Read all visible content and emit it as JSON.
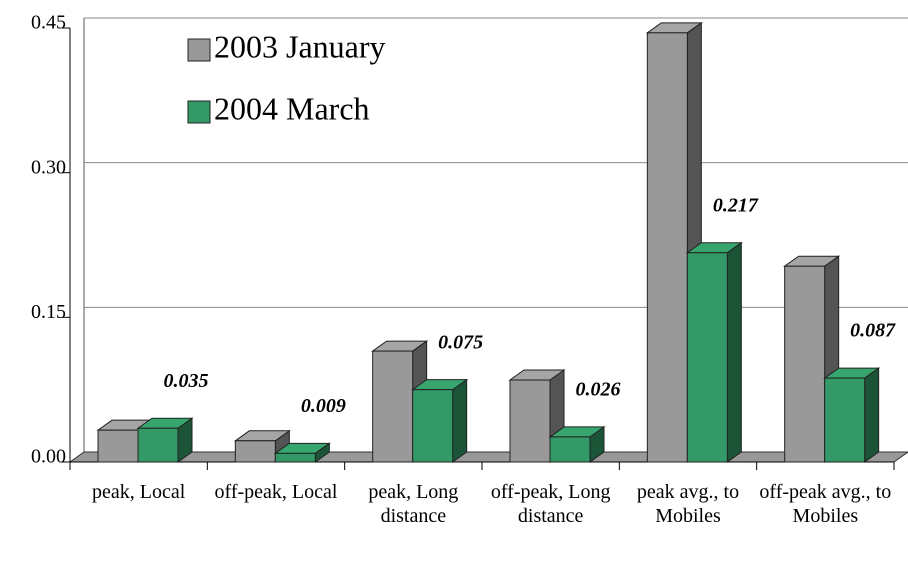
{
  "chart_data": {
    "type": "bar3d",
    "categories": [
      "peak, Local",
      "off-peak, Local",
      "peak, Long distance",
      "off-peak, Long distance",
      "peak avg., to Mobiles",
      "off-peak avg., to Mobiles"
    ],
    "series": [
      {
        "name": "2003 January",
        "color": "#999999",
        "values": [
          0.033,
          0.022,
          0.115,
          0.085,
          0.445,
          0.203
        ]
      },
      {
        "name": "2004 March",
        "color": "#339966",
        "values": [
          0.035,
          0.009,
          0.075,
          0.026,
          0.217,
          0.087
        ],
        "value_labels": [
          "0.035",
          "0.009",
          "0.075",
          "0.026",
          "0.217",
          "0.087"
        ]
      }
    ],
    "ylim": [
      0,
      0.45
    ],
    "yticks": [
      {
        "value": 0,
        "label": "0.00"
      },
      {
        "value": 0.15,
        "label": "0.15"
      },
      {
        "value": 0.3,
        "label": "0.30"
      },
      {
        "value": 0.45,
        "label": "0.45"
      }
    ],
    "grid": true,
    "legend": "top-left"
  }
}
